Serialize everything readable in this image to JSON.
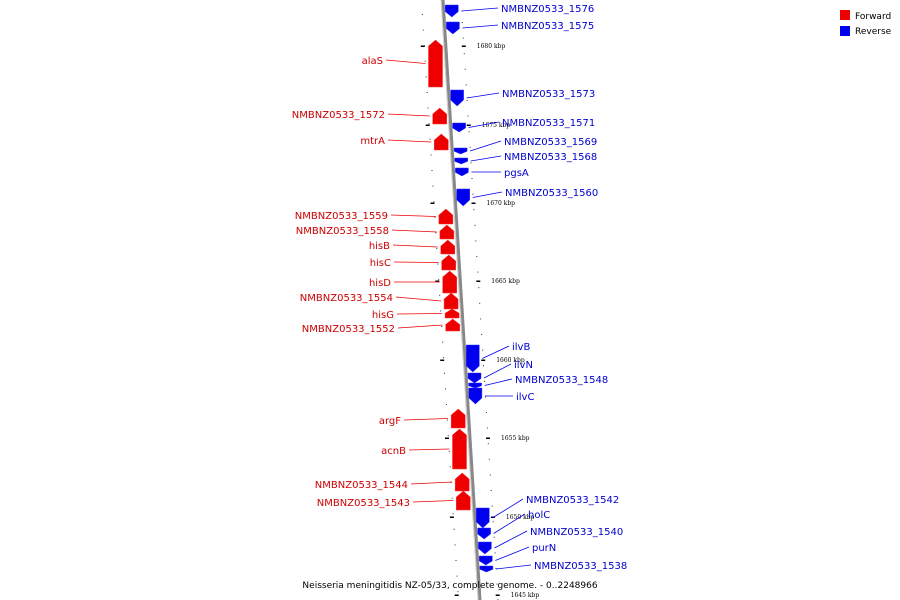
{
  "caption": "Neisseria meningitidis NZ-05/33, complete genome. - 0..2248966",
  "legend": [
    {
      "label": "Forward",
      "color": "#ee0000"
    },
    {
      "label": "Reverse",
      "color": "#0000ee"
    }
  ],
  "colors": {
    "forward": "#ee0000",
    "reverse": "#0000ee",
    "forward_label": "#cc0000",
    "reverse_label": "#0000cc",
    "backbone": "#888888"
  },
  "ticks": [
    "1680 kbp",
    "1675 kbp",
    "1670 kbp",
    "1665 kbp",
    "1660 kbp",
    "1655 kbp",
    "1650 kbp",
    "1645 kbp"
  ],
  "reverse_genes": [
    "NMBNZ0533_1576",
    "NMBNZ0533_1575",
    "NMBNZ0533_1573",
    "NMBNZ0533_1571",
    "NMBNZ0533_1569",
    "NMBNZ0533_1568",
    "pgsA",
    "NMBNZ0533_1560",
    "ilvB",
    "ilvN",
    "NMBNZ0533_1548",
    "ilvC",
    "NMBNZ0533_1542",
    "holC",
    "NMBNZ0533_1540",
    "purN",
    "NMBNZ0533_1538"
  ],
  "forward_genes": [
    "alaS",
    "NMBNZ0533_1572",
    "mtrA",
    "NMBNZ0533_1559",
    "NMBNZ0533_1558",
    "hisB",
    "hisC",
    "hisD",
    "NMBNZ0533_1554",
    "hisG",
    "NMBNZ0533_1552",
    "argF",
    "acnB",
    "NMBNZ0533_1544",
    "NMBNZ0533_1543"
  ]
}
